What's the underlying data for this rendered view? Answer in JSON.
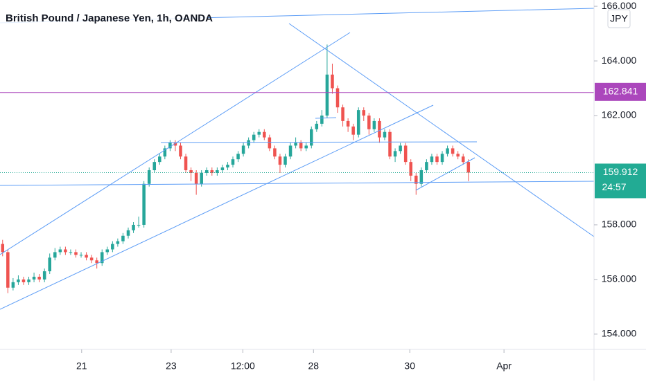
{
  "chart_data": {
    "type": "candlestick",
    "title": "British Pound / Japanese Yen, 1h, OANDA",
    "currency": "JPY",
    "up_color": "#26a69a",
    "down_color": "#ef5350",
    "open": [
      157.3,
      157.0,
      155.7,
      155.9,
      156.0,
      155.9,
      156.0,
      156.1,
      156.0,
      156.3,
      156.8,
      157.0,
      157.1,
      157.0,
      157.0,
      156.9,
      156.9,
      156.8,
      156.7,
      156.6,
      157.0,
      157.1,
      157.3,
      157.4,
      157.6,
      157.8,
      158.0,
      158.0,
      159.5,
      160.0,
      160.3,
      160.5,
      160.8,
      161.0,
      160.9,
      160.5,
      160.0,
      159.9,
      159.5,
      159.9,
      160.0,
      159.9,
      160.0,
      160.1,
      160.2,
      160.4,
      160.6,
      160.9,
      161.1,
      161.3,
      161.4,
      161.2,
      160.8,
      160.5,
      160.2,
      160.5,
      160.9,
      161.0,
      160.8,
      160.9,
      161.5,
      161.7,
      162.0,
      163.5,
      163.0,
      162.3,
      161.8,
      161.6,
      161.3,
      162.2,
      162.0,
      161.5,
      161.8,
      161.2,
      161.4,
      160.5,
      160.7,
      160.9,
      160.3,
      159.8,
      159.5,
      160.0,
      160.3,
      160.5,
      160.3,
      160.6,
      160.8,
      160.6,
      160.5,
      160.3
    ],
    "high": [
      157.45,
      157.1,
      156.05,
      156.15,
      156.1,
      156.1,
      156.25,
      156.2,
      156.4,
      156.95,
      157.15,
      157.2,
      157.2,
      157.1,
      157.1,
      157.0,
      157.0,
      156.9,
      156.8,
      157.1,
      157.2,
      157.4,
      157.5,
      157.7,
      157.9,
      158.1,
      158.3,
      159.6,
      160.1,
      160.4,
      160.6,
      160.9,
      161.1,
      161.1,
      161.0,
      160.6,
      160.1,
      160.0,
      160.0,
      160.1,
      160.1,
      160.1,
      160.2,
      160.3,
      160.5,
      160.7,
      161.0,
      161.2,
      161.4,
      161.5,
      161.5,
      161.3,
      160.9,
      160.6,
      160.6,
      161.0,
      161.2,
      161.1,
      161.0,
      161.6,
      161.8,
      162.2,
      164.6,
      163.9,
      163.1,
      162.4,
      161.9,
      161.7,
      162.3,
      162.3,
      162.1,
      161.9,
      161.9,
      161.5,
      161.5,
      160.8,
      161.0,
      161.0,
      160.4,
      159.9,
      160.1,
      160.4,
      160.6,
      160.6,
      160.7,
      160.9,
      160.9,
      160.7,
      160.6,
      160.4
    ],
    "low": [
      156.85,
      155.5,
      155.6,
      155.8,
      155.8,
      155.8,
      155.9,
      155.9,
      155.9,
      156.2,
      156.7,
      156.9,
      156.9,
      156.9,
      156.8,
      156.8,
      156.7,
      156.6,
      156.4,
      156.5,
      156.9,
      157.0,
      157.2,
      157.3,
      157.5,
      157.7,
      157.9,
      157.9,
      159.4,
      159.9,
      160.2,
      160.4,
      160.7,
      160.7,
      160.4,
      159.9,
      159.6,
      159.1,
      159.4,
      159.8,
      159.8,
      159.8,
      159.9,
      160.0,
      160.1,
      160.3,
      160.5,
      160.8,
      161.0,
      161.2,
      161.1,
      160.7,
      160.4,
      159.9,
      160.1,
      160.4,
      160.8,
      160.7,
      160.7,
      160.8,
      161.4,
      161.6,
      161.9,
      162.8,
      162.1,
      161.6,
      161.4,
      161.1,
      161.2,
      161.8,
      161.3,
      161.4,
      161.0,
      161.1,
      160.4,
      160.3,
      160.6,
      160.2,
      159.6,
      159.1,
      159.4,
      159.9,
      160.2,
      160.2,
      160.2,
      160.5,
      160.5,
      160.4,
      160.2,
      159.6
    ],
    "close": [
      157.0,
      155.7,
      155.9,
      156.0,
      155.9,
      156.0,
      156.1,
      156.0,
      156.3,
      156.8,
      157.0,
      157.1,
      157.0,
      157.0,
      156.9,
      156.9,
      156.8,
      156.7,
      156.6,
      157.0,
      157.1,
      157.3,
      157.4,
      157.6,
      157.8,
      158.0,
      158.0,
      159.5,
      160.0,
      160.3,
      160.5,
      160.8,
      161.0,
      160.9,
      160.5,
      160.0,
      159.9,
      159.5,
      159.9,
      160.0,
      159.9,
      160.0,
      160.1,
      160.2,
      160.4,
      160.6,
      160.9,
      161.1,
      161.3,
      161.4,
      161.2,
      160.8,
      160.5,
      160.2,
      160.5,
      160.9,
      161.0,
      160.8,
      160.9,
      161.5,
      161.7,
      162.0,
      163.5,
      163.0,
      162.3,
      161.8,
      161.6,
      161.3,
      162.2,
      162.0,
      161.5,
      161.8,
      161.2,
      161.4,
      160.5,
      160.7,
      160.9,
      160.3,
      159.8,
      159.5,
      160.0,
      160.3,
      160.5,
      160.3,
      160.6,
      160.8,
      160.6,
      160.5,
      160.3,
      159.912
    ],
    "xlim": [
      -0.5,
      113
    ],
    "xticks": [
      {
        "value": 15.1,
        "label": "21"
      },
      {
        "value": 32.2,
        "label": "23"
      },
      {
        "value": 45.9,
        "label": "12:00"
      },
      {
        "value": 59.4,
        "label": "28"
      },
      {
        "value": 77.8,
        "label": "30"
      },
      {
        "value": 95.8,
        "label": "Apr"
      }
    ],
    "ylim": [
      153.44,
      166.23
    ],
    "yticks": [
      {
        "value": 154,
        "label": "154.000"
      },
      {
        "value": 156,
        "label": "156.000"
      },
      {
        "value": 158,
        "label": "158.000"
      },
      {
        "value": 162,
        "label": "162.000"
      },
      {
        "value": 164,
        "label": "164.000"
      },
      {
        "value": 166,
        "label": "166.000"
      }
    ],
    "price_line": {
      "value": 162.841,
      "label": "162.841",
      "color": "#ab47bc"
    },
    "last_price": {
      "value": 159.912,
      "label": "159.912",
      "countdown": "24:57",
      "color": "#22ab94"
    }
  }
}
